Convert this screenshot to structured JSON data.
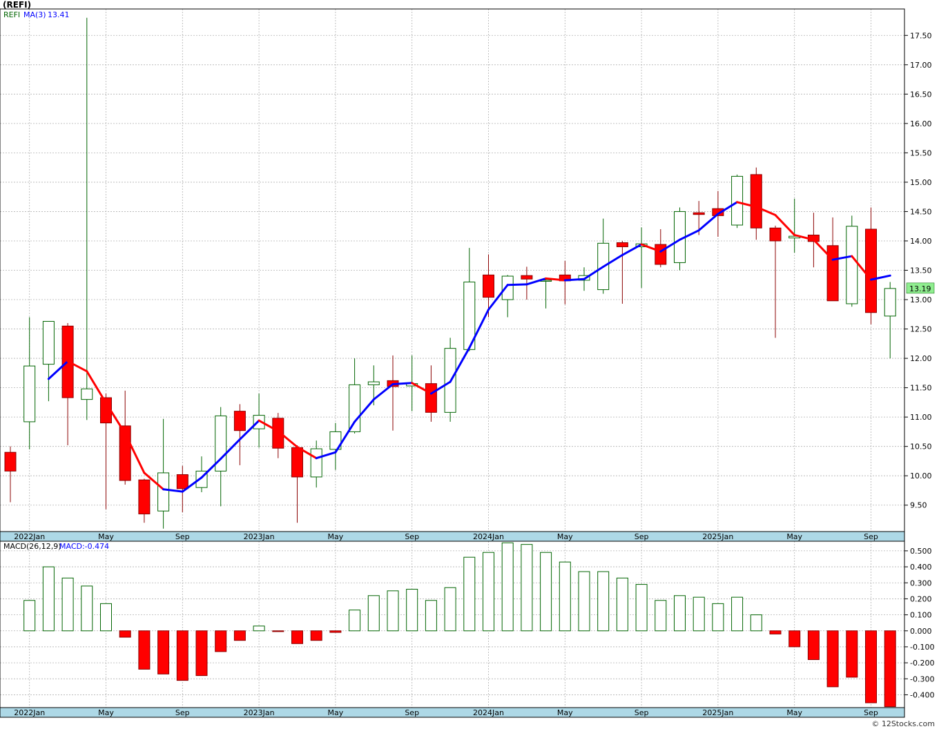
{
  "header": {
    "symbol": "(REFI)",
    "price_legend_symbol": "REFI",
    "ma_label": "MA(3)",
    "ma_value": "13.41",
    "macd_label": "MACD(26,12,9)",
    "macd_value": "MACD:-0.474",
    "last_price": "13.19",
    "footer": "© 12Stocks.com"
  },
  "colors": {
    "up_candle_border": "#006400",
    "down_candle_fill": "#ff0000",
    "ma_up": "#0000ff",
    "ma_down": "#ff0000",
    "axis_band": "#add8e6",
    "grid": "#b0b0b0",
    "last_price_badge": "#90ee90"
  },
  "x_axis_labels": [
    "2022Jan",
    "May",
    "Sep",
    "2023Jan",
    "May",
    "Sep",
    "2024Jan",
    "May",
    "Sep",
    "2025Jan",
    "May",
    "Sep"
  ],
  "chart_data": [
    {
      "type": "candlestick",
      "title": "(REFI)",
      "ylim": [
        9.05,
        17.95
      ],
      "yticks": [
        9.5,
        10.0,
        10.5,
        11.0,
        11.5,
        12.0,
        12.5,
        13.0,
        13.5,
        14.0,
        14.5,
        15.0,
        15.5,
        16.0,
        16.5,
        17.0,
        17.5
      ],
      "grid": true,
      "months": [
        "2021-12",
        "2022-01",
        "2022-02",
        "2022-03",
        "2022-04",
        "2022-05",
        "2022-06",
        "2022-07",
        "2022-08",
        "2022-09",
        "2022-10",
        "2022-11",
        "2022-12",
        "2023-01",
        "2023-02",
        "2023-03",
        "2023-04",
        "2023-05",
        "2023-06",
        "2023-07",
        "2023-08",
        "2023-09",
        "2023-10",
        "2023-11",
        "2023-12",
        "2024-01",
        "2024-02",
        "2024-03",
        "2024-04",
        "2024-05",
        "2024-06",
        "2024-07",
        "2024-08",
        "2024-09",
        "2024-10",
        "2024-11",
        "2024-12",
        "2025-01",
        "2025-02",
        "2025-03",
        "2025-04",
        "2025-05",
        "2025-06",
        "2025-07",
        "2025-08",
        "2025-09",
        "2025-10"
      ],
      "ohlc": [
        [
          10.4,
          10.5,
          9.55,
          10.08
        ],
        [
          10.92,
          12.7,
          10.45,
          11.87
        ],
        [
          11.9,
          12.63,
          11.27,
          12.63
        ],
        [
          12.55,
          12.6,
          10.52,
          11.33
        ],
        [
          11.3,
          17.8,
          10.95,
          11.48
        ],
        [
          11.33,
          11.4,
          9.43,
          10.9
        ],
        [
          10.85,
          11.45,
          9.85,
          9.92
        ],
        [
          9.93,
          9.95,
          9.2,
          9.35
        ],
        [
          9.4,
          10.97,
          9.1,
          10.05
        ],
        [
          10.02,
          10.17,
          9.38,
          9.78
        ],
        [
          9.8,
          10.33,
          9.72,
          10.08
        ],
        [
          10.08,
          11.17,
          9.48,
          11.02
        ],
        [
          11.1,
          11.22,
          10.18,
          10.77
        ],
        [
          10.8,
          11.4,
          10.48,
          11.03
        ],
        [
          10.98,
          11.07,
          10.3,
          10.47
        ],
        [
          10.48,
          10.52,
          9.2,
          9.98
        ],
        [
          9.98,
          10.6,
          9.8,
          10.46
        ],
        [
          10.45,
          10.9,
          10.1,
          10.75
        ],
        [
          10.75,
          12.0,
          10.72,
          11.55
        ],
        [
          11.55,
          11.88,
          11.2,
          11.6
        ],
        [
          11.62,
          12.05,
          10.77,
          11.52
        ],
        [
          11.53,
          12.05,
          11.1,
          11.57
        ],
        [
          11.57,
          11.88,
          10.92,
          11.08
        ],
        [
          11.08,
          12.35,
          10.92,
          12.17
        ],
        [
          12.15,
          13.88,
          12.12,
          13.3
        ],
        [
          13.42,
          13.77,
          12.7,
          13.04
        ],
        [
          13.0,
          13.42,
          12.7,
          13.4
        ],
        [
          13.41,
          13.56,
          13.0,
          13.35
        ],
        [
          13.33,
          13.35,
          12.85,
          13.33
        ],
        [
          13.42,
          13.66,
          12.92,
          13.32
        ],
        [
          13.33,
          13.55,
          13.15,
          13.41
        ],
        [
          13.17,
          14.38,
          13.1,
          13.96
        ],
        [
          13.97,
          14.0,
          12.93,
          13.9
        ],
        [
          13.9,
          14.23,
          13.2,
          13.95
        ],
        [
          13.94,
          14.2,
          13.55,
          13.6
        ],
        [
          13.63,
          14.57,
          13.5,
          14.5
        ],
        [
          14.48,
          14.68,
          14.1,
          14.45
        ],
        [
          14.55,
          14.85,
          14.07,
          14.43
        ],
        [
          14.27,
          15.13,
          14.22,
          15.1
        ],
        [
          15.13,
          15.25,
          14.02,
          14.22
        ],
        [
          14.22,
          14.26,
          12.35,
          14.0
        ],
        [
          14.05,
          14.72,
          13.8,
          14.08
        ],
        [
          14.1,
          14.48,
          13.55,
          13.99
        ],
        [
          13.92,
          14.4,
          12.98,
          12.98
        ],
        [
          12.93,
          14.43,
          12.88,
          14.25
        ],
        [
          14.2,
          14.57,
          12.58,
          12.78
        ],
        [
          12.72,
          13.3,
          12.0,
          13.19
        ]
      ],
      "ma3": [
        null,
        null,
        11.65,
        11.95,
        11.78,
        11.24,
        10.72,
        10.05,
        9.77,
        9.73,
        9.97,
        10.29,
        10.62,
        10.94,
        10.76,
        10.49,
        10.3,
        10.4,
        10.92,
        11.3,
        11.56,
        11.58,
        11.4,
        11.6,
        12.18,
        12.83,
        13.25,
        13.26,
        13.36,
        13.33,
        13.35,
        13.56,
        13.76,
        13.94,
        13.82,
        14.02,
        14.18,
        14.46,
        14.66,
        14.58,
        14.44,
        14.1,
        14.02,
        13.68,
        13.74,
        13.34,
        13.41
      ],
      "ma3_direction": [
        "",
        "",
        "up",
        "up",
        "down",
        "down",
        "down",
        "down",
        "down",
        "up",
        "up",
        "up",
        "up",
        "up",
        "down",
        "down",
        "down",
        "up",
        "up",
        "up",
        "up",
        "up",
        "down",
        "up",
        "up",
        "up",
        "up",
        "up",
        "up",
        "down",
        "up",
        "up",
        "up",
        "up",
        "down",
        "up",
        "up",
        "up",
        "up",
        "down",
        "down",
        "down",
        "down",
        "down",
        "up",
        "down",
        "up"
      ]
    },
    {
      "type": "bar",
      "title": "MACD(26,12,9)",
      "ylim": [
        -0.48,
        0.56
      ],
      "yticks": [
        -0.4,
        -0.3,
        -0.2,
        -0.1,
        0.0,
        0.1,
        0.2,
        0.3,
        0.4,
        0.5
      ],
      "grid": true,
      "months": [
        "2022-01",
        "2022-02",
        "2022-03",
        "2022-04",
        "2022-05",
        "2022-06",
        "2022-07",
        "2022-08",
        "2022-09",
        "2022-10",
        "2022-11",
        "2022-12",
        "2023-01",
        "2023-02",
        "2023-03",
        "2023-04",
        "2023-05",
        "2023-06",
        "2023-07",
        "2023-08",
        "2023-09",
        "2023-10",
        "2023-11",
        "2023-12",
        "2024-01",
        "2024-02",
        "2024-03",
        "2024-04",
        "2024-05",
        "2024-06",
        "2024-07",
        "2024-08",
        "2024-09",
        "2024-10",
        "2024-11",
        "2024-12",
        "2025-01",
        "2025-02",
        "2025-03",
        "2025-04",
        "2025-05",
        "2025-06",
        "2025-07",
        "2025-08",
        "2025-09",
        "2025-10"
      ],
      "values": [
        0.19,
        0.4,
        0.33,
        0.28,
        0.17,
        -0.04,
        -0.24,
        -0.27,
        -0.31,
        -0.28,
        -0.13,
        -0.06,
        0.03,
        -0.005,
        -0.08,
        -0.06,
        -0.01,
        0.13,
        0.22,
        0.25,
        0.26,
        0.19,
        0.27,
        0.46,
        0.49,
        0.55,
        0.54,
        0.49,
        0.43,
        0.37,
        0.37,
        0.33,
        0.29,
        0.19,
        0.22,
        0.21,
        0.17,
        0.21,
        0.1,
        -0.02,
        -0.1,
        -0.18,
        -0.35,
        -0.29,
        -0.45,
        -0.474
      ]
    }
  ]
}
